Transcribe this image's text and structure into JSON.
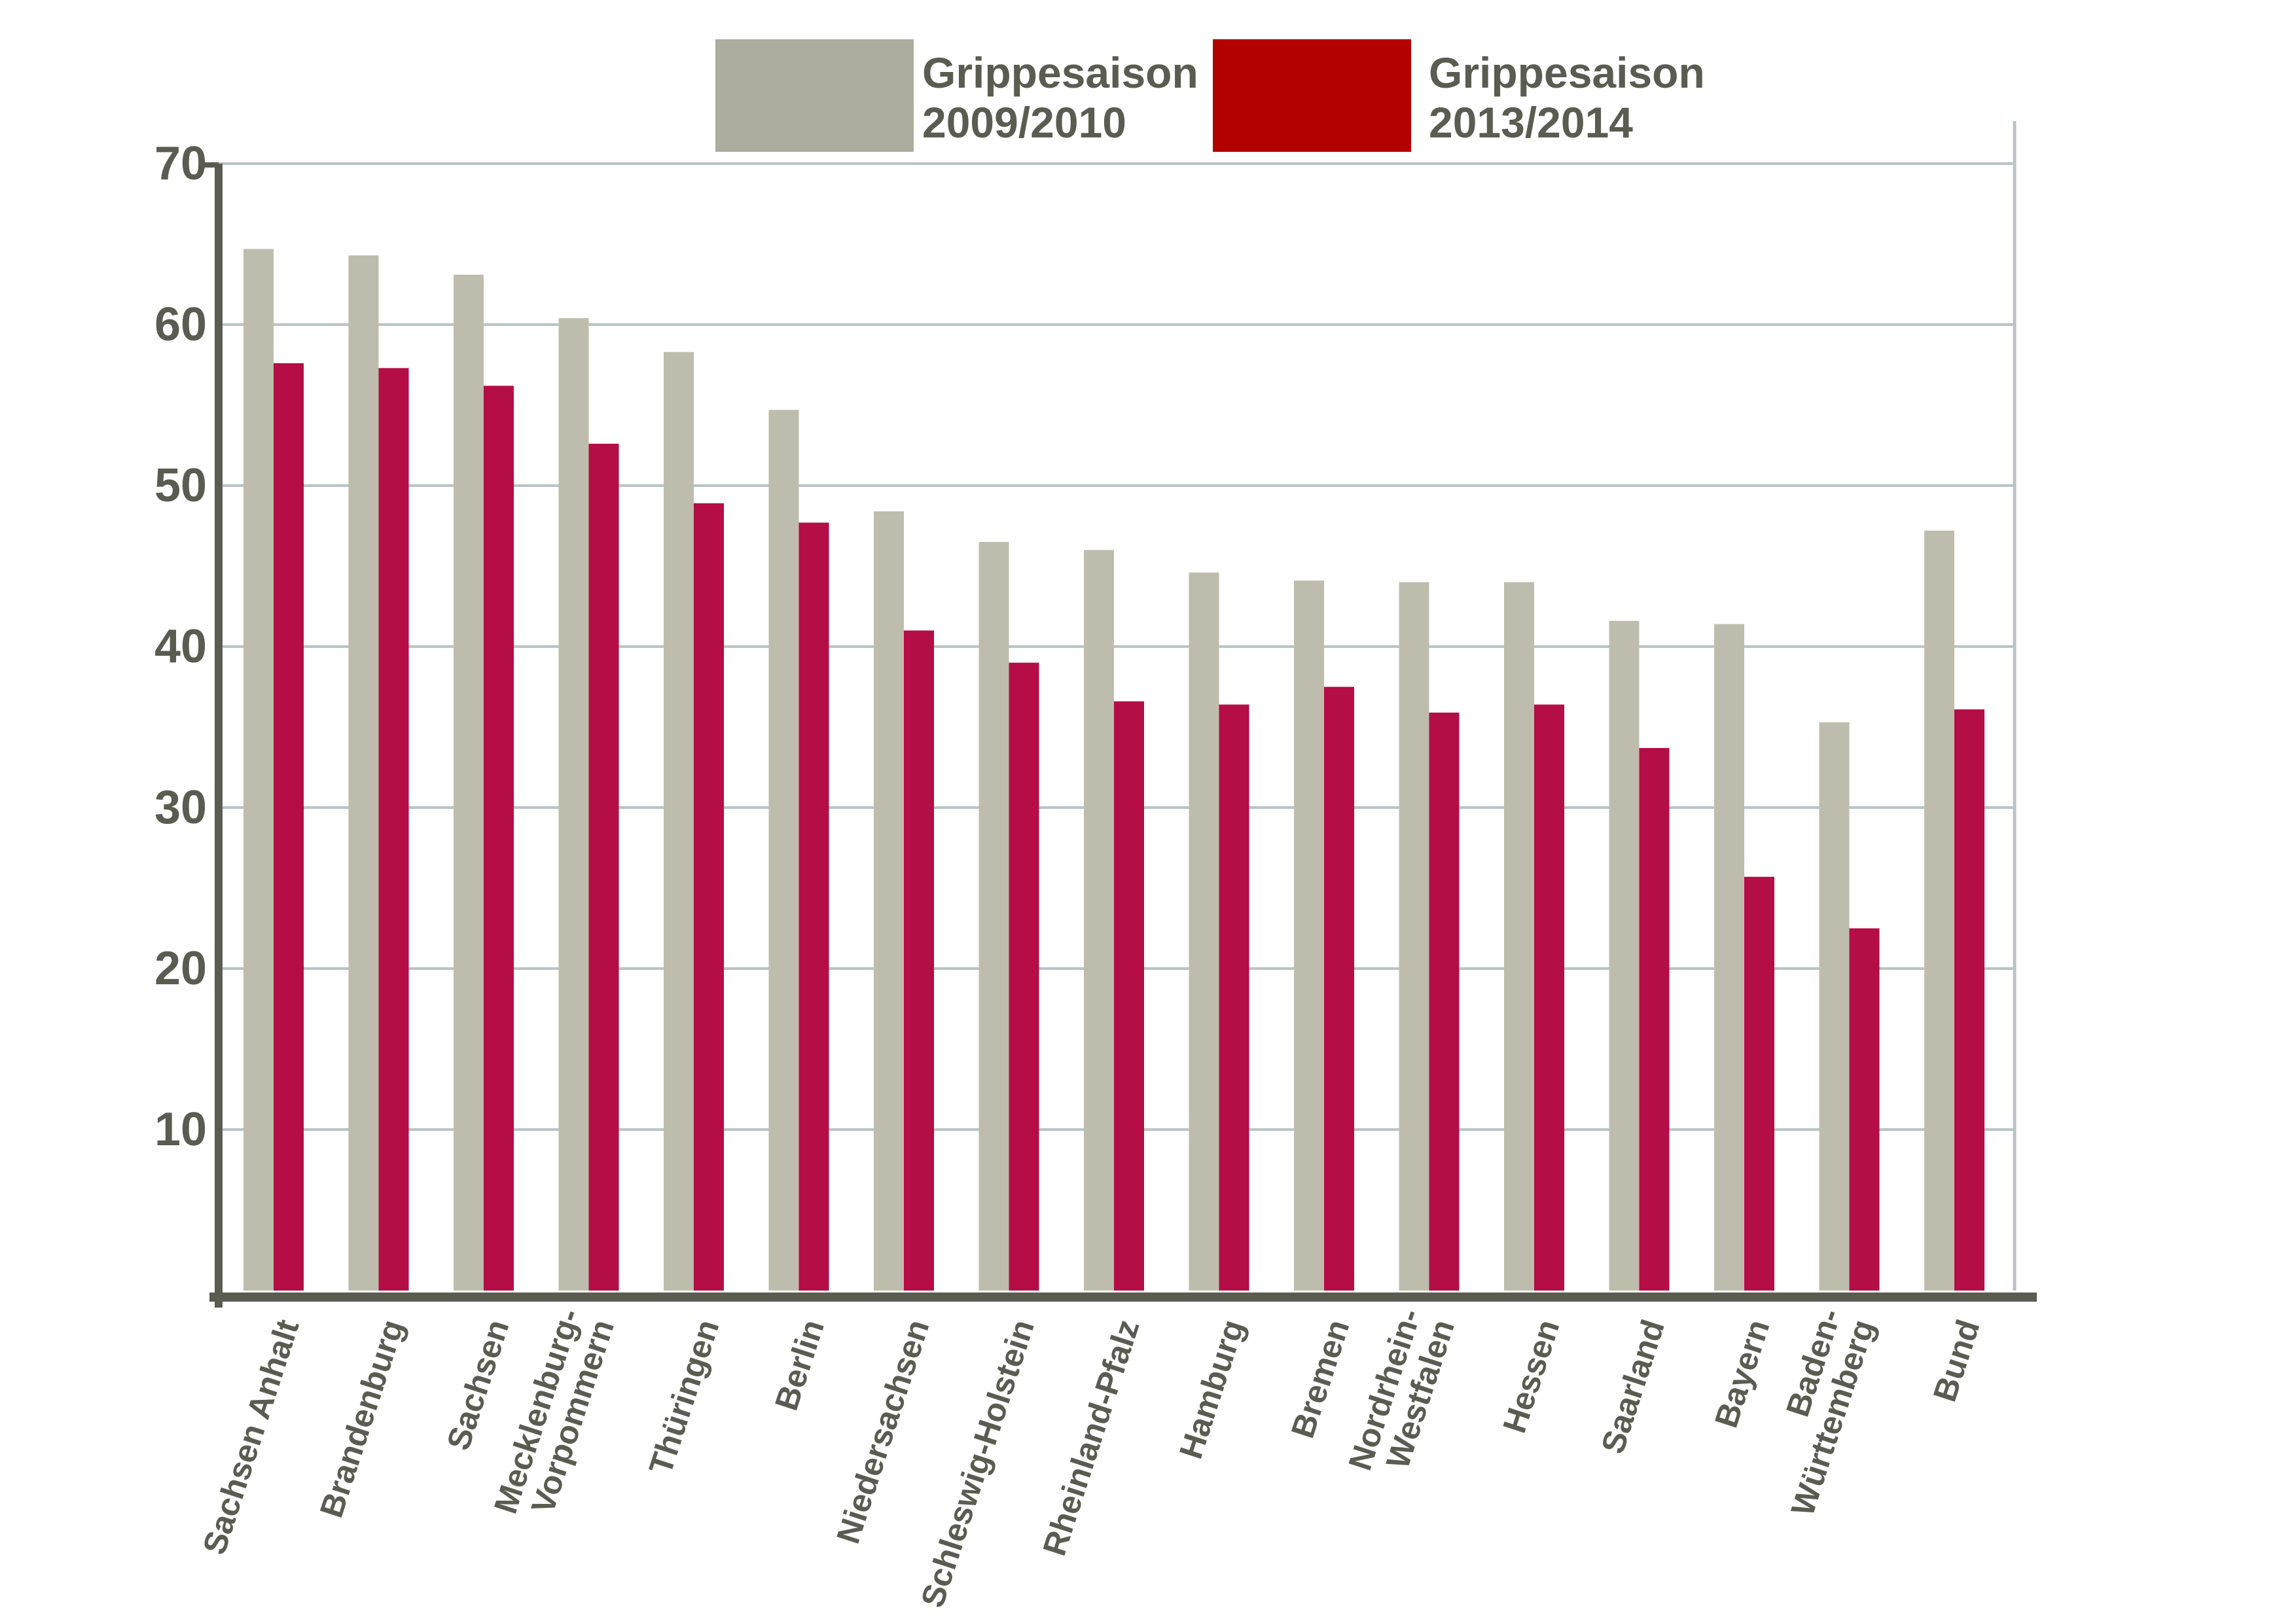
{
  "chart_data": {
    "type": "bar",
    "categories": [
      [
        "Sachsen Anhalt"
      ],
      [
        "Brandenburg"
      ],
      [
        "Sachsen"
      ],
      [
        "Mecklenburg-",
        "Vorpommern"
      ],
      [
        "Thüringen"
      ],
      [
        "Berlin"
      ],
      [
        "Niedersachsen"
      ],
      [
        "Schleswig-Holstein"
      ],
      [
        "Rheinland-Pfalz"
      ],
      [
        "Hamburg"
      ],
      [
        "Bremen"
      ],
      [
        "Nordrhein-",
        "Westfalen"
      ],
      [
        "Hessen"
      ],
      [
        "Saarland"
      ],
      [
        "Bayern"
      ],
      [
        "Baden-",
        "Württemberg"
      ],
      [
        "Bund"
      ]
    ],
    "series": [
      {
        "name": [
          "Grippesaison",
          "2009/2010"
        ],
        "bar_color": "#bebdad",
        "legend_color": "#adad9f",
        "values": [
          64.7,
          64.3,
          63.1,
          60.4,
          58.3,
          54.7,
          48.4,
          46.5,
          46.0,
          44.6,
          44.1,
          44.0,
          44.0,
          41.6,
          41.4,
          35.3,
          47.2
        ]
      },
      {
        "name": [
          "Grippesaison",
          "2013/2014"
        ],
        "bar_color": "#b50d45",
        "legend_color": "#b30000",
        "values": [
          57.6,
          57.3,
          56.2,
          52.6,
          48.9,
          47.7,
          41.0,
          39.0,
          36.6,
          36.4,
          37.5,
          35.9,
          36.4,
          33.7,
          25.7,
          22.5,
          36.1
        ]
      }
    ],
    "title": "",
    "xlabel": "",
    "ylabel": "",
    "ylim": [
      0,
      70
    ],
    "yticks": [
      "10",
      "20",
      "30",
      "40",
      "50",
      "60",
      "70"
    ],
    "grid": true,
    "legend_position": "top",
    "colors": {
      "axis": "#5b5c51",
      "grid": "#b9c3c6",
      "text": "#5b5c51"
    }
  }
}
